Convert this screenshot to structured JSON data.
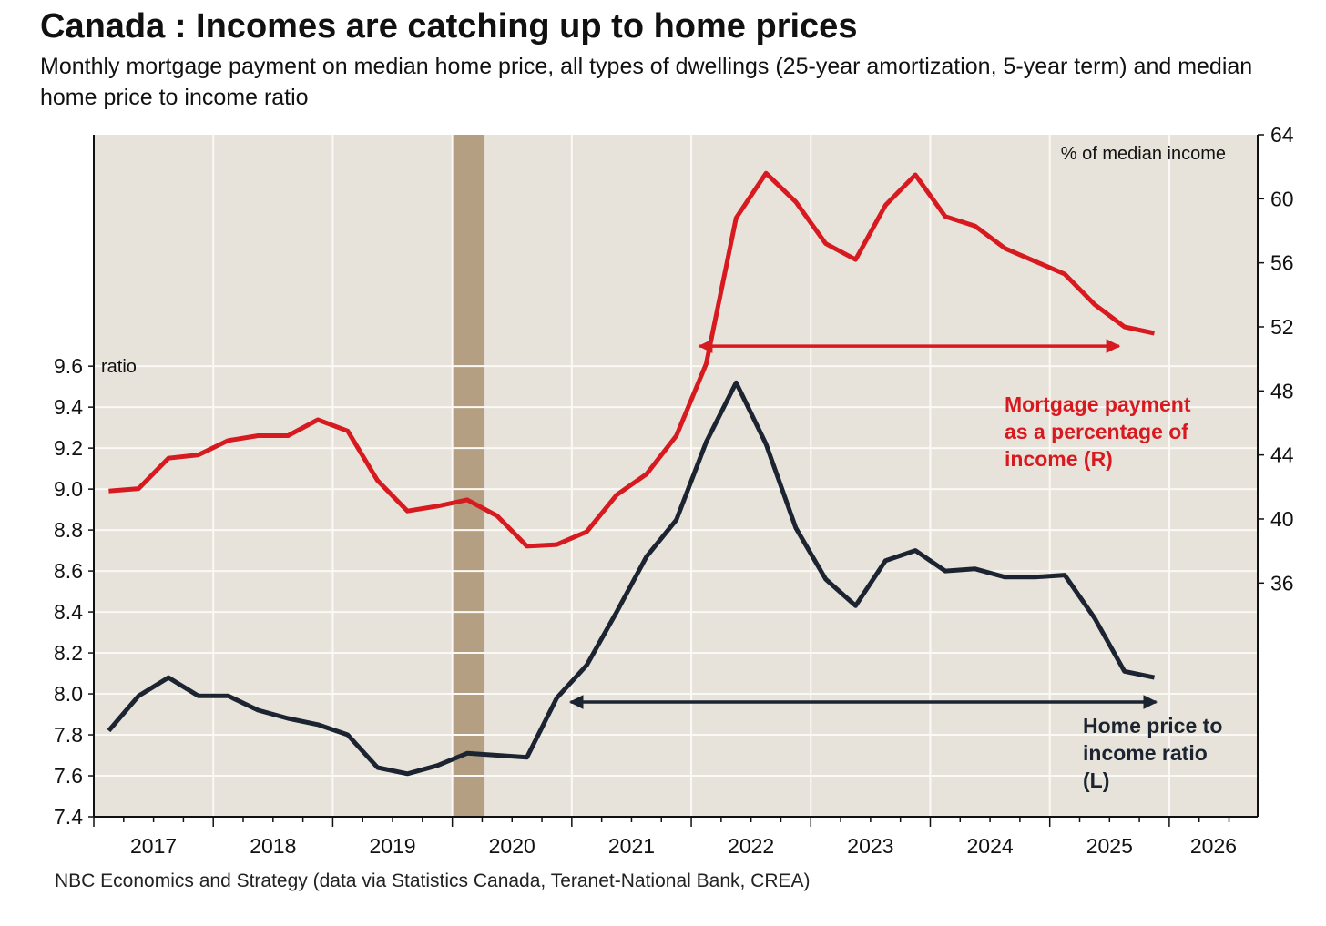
{
  "title": "Canada : Incomes are catching up to home prices",
  "subtitle": "Monthly mortgage payment on median home price, all types of dwellings (25-year amortization, 5-year term) and median home price to income ratio",
  "source": "NBC Economics and Strategy (data via Statistics Canada, Teranet-National Bank, CREA)",
  "chart_data": {
    "type": "line",
    "x_start": 2017.125,
    "x_step": 0.25,
    "xlim": [
      2017,
      2026.74
    ],
    "x_ticks": [
      2017,
      2018,
      2019,
      2020,
      2021,
      2022,
      2023,
      2024,
      2025,
      2026
    ],
    "x_tick_labels": [
      "2017",
      "2018",
      "2019",
      "2020",
      "2021",
      "2022",
      "2023",
      "2024",
      "2025",
      "2026"
    ],
    "left_axis": {
      "label": "ratio",
      "ylim": [
        7.4,
        10.73
      ],
      "ticks": [
        7.4,
        7.6,
        7.8,
        8.0,
        8.2,
        8.4,
        8.6,
        8.8,
        9.0,
        9.2,
        9.4,
        9.6
      ],
      "tick_labels": [
        "7.4",
        "7.6",
        "7.8",
        "8.0",
        "8.2",
        "8.4",
        "8.6",
        "8.8",
        "9.0",
        "9.2",
        "9.4",
        "9.6"
      ]
    },
    "right_axis": {
      "label": "% of median income",
      "ylim": [
        21.4,
        64
      ],
      "ticks": [
        36,
        40,
        44,
        48,
        52,
        56,
        60,
        64
      ],
      "tick_labels": [
        "36",
        "40",
        "44",
        "48",
        "52",
        "56",
        "60",
        "64"
      ]
    },
    "recession": [
      2020.0,
      2020.27
    ],
    "grid": true,
    "series": [
      {
        "name": "Mortgage payment as a percentage of income (R)",
        "axis": "right",
        "color": "#d71920",
        "label_lines": [
          "Mortgage payment",
          "as a percentage of",
          "income (R)"
        ],
        "values": [
          41.75,
          41.9,
          43.8,
          44.0,
          44.9,
          45.2,
          45.2,
          46.2,
          45.5,
          42.4,
          40.5,
          40.8,
          41.2,
          40.2,
          38.3,
          38.4,
          39.2,
          41.5,
          42.8,
          45.2,
          49.7,
          58.8,
          61.6,
          59.8,
          57.2,
          56.2,
          59.6,
          61.5,
          58.9,
          58.3,
          56.9,
          56.1,
          55.3,
          53.4,
          52.0,
          51.6
        ],
        "arrow": {
          "from": 2022.07,
          "to": 2025.58,
          "value": 50.8
        }
      },
      {
        "name": "Home price to income ratio (L)",
        "axis": "left",
        "color": "#1b2430",
        "label_lines": [
          "Home price to",
          "income ratio",
          "(L)"
        ],
        "values": [
          7.82,
          7.99,
          8.08,
          7.99,
          7.99,
          7.92,
          7.88,
          7.85,
          7.8,
          7.64,
          7.61,
          7.65,
          7.71,
          7.7,
          7.69,
          7.98,
          8.14,
          8.4,
          8.67,
          8.85,
          9.23,
          9.52,
          9.22,
          8.81,
          8.56,
          8.43,
          8.65,
          8.7,
          8.6,
          8.61,
          8.57,
          8.57,
          8.58,
          8.37,
          8.11,
          8.08
        ],
        "arrow": {
          "from": 2020.99,
          "to": 2025.89,
          "value": 7.96
        }
      }
    ]
  }
}
